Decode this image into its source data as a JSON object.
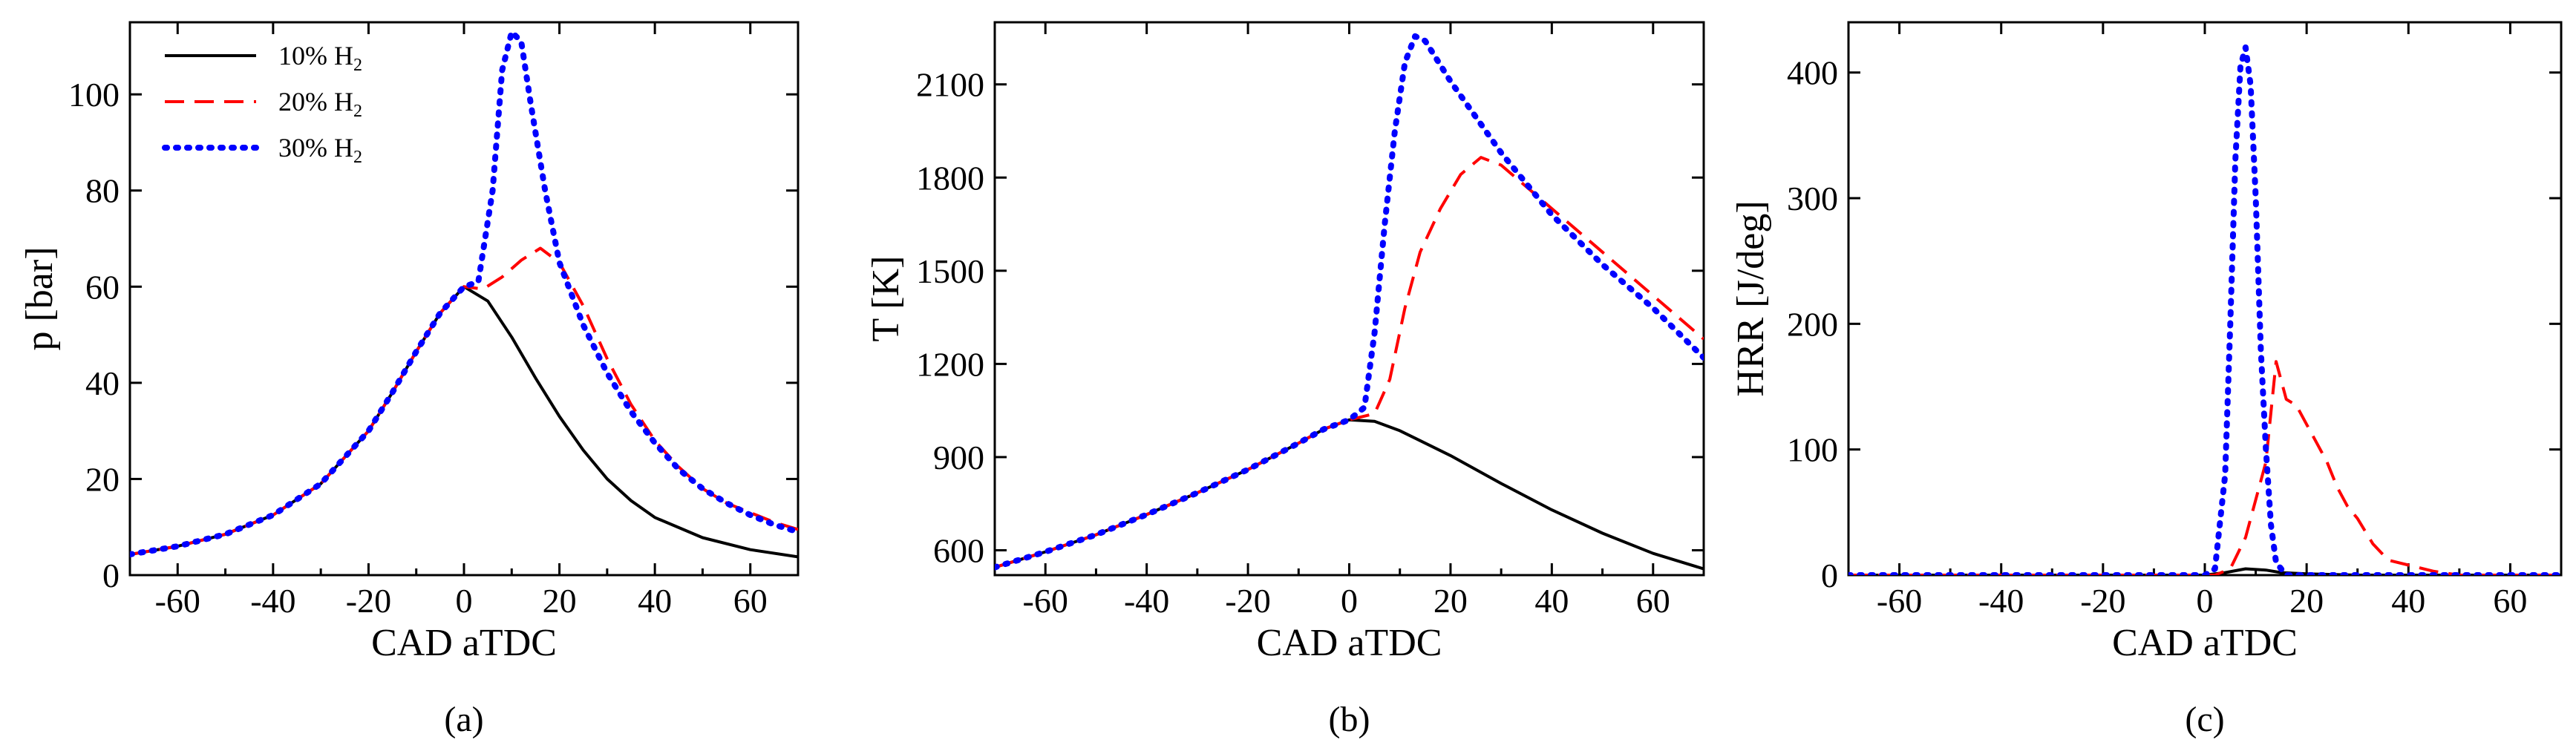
{
  "chart_data": [
    {
      "type": "line",
      "panel_label": "(a)",
      "xlabel": "CAD aTDC",
      "ylabel": "p [bar]",
      "xlim": [
        -70,
        70
      ],
      "ylim": [
        0,
        115
      ],
      "xticks": [
        -60,
        -40,
        -20,
        0,
        20,
        40,
        60
      ],
      "yticks": [
        0,
        20,
        40,
        60,
        80,
        100
      ],
      "legend": {
        "location": "top-left",
        "entries": [
          {
            "prefix": "10% H",
            "sub": "2"
          },
          {
            "prefix": "20% H",
            "sub": "2"
          },
          {
            "prefix": "30% H",
            "sub": "2"
          }
        ]
      },
      "series": [
        {
          "name": "10% H2",
          "color": "#000000",
          "style": "solid",
          "points": [
            [
              -70,
              4.3
            ],
            [
              -60,
              6
            ],
            [
              -50,
              8.5
            ],
            [
              -40,
              12.5
            ],
            [
              -30,
              19
            ],
            [
              -20,
              30
            ],
            [
              -15,
              38
            ],
            [
              -10,
              46.5
            ],
            [
              -5,
              54.5
            ],
            [
              0,
              60
            ],
            [
              5,
              57
            ],
            [
              10,
              49.5
            ],
            [
              15,
              41
            ],
            [
              20,
              33
            ],
            [
              25,
              26
            ],
            [
              30,
              20
            ],
            [
              35,
              15.5
            ],
            [
              40,
              12
            ],
            [
              50,
              7.8
            ],
            [
              60,
              5.3
            ],
            [
              70,
              3.8
            ]
          ]
        },
        {
          "name": "20% H2",
          "color": "#ff0000",
          "style": "dashed",
          "points": [
            [
              -70,
              4.3
            ],
            [
              -60,
              6
            ],
            [
              -50,
              8.5
            ],
            [
              -40,
              12.5
            ],
            [
              -30,
              19
            ],
            [
              -20,
              30
            ],
            [
              -15,
              38
            ],
            [
              -10,
              46.5
            ],
            [
              -5,
              54.5
            ],
            [
              0,
              60
            ],
            [
              4,
              59.5
            ],
            [
              8,
              62
            ],
            [
              12,
              65.5
            ],
            [
              16,
              68
            ],
            [
              20,
              65
            ],
            [
              25,
              56
            ],
            [
              30,
              45
            ],
            [
              35,
              35.5
            ],
            [
              40,
              28
            ],
            [
              45,
              22.5
            ],
            [
              50,
              18
            ],
            [
              55,
              15
            ],
            [
              60,
              13
            ],
            [
              65,
              11
            ],
            [
              70,
              9.5
            ]
          ]
        },
        {
          "name": "30% H2",
          "color": "#0000ff",
          "style": "dotted",
          "points": [
            [
              -70,
              4.3
            ],
            [
              -60,
              6
            ],
            [
              -50,
              8.5
            ],
            [
              -40,
              12.5
            ],
            [
              -30,
              19
            ],
            [
              -20,
              30
            ],
            [
              -15,
              38
            ],
            [
              -10,
              46.5
            ],
            [
              -5,
              54.5
            ],
            [
              0,
              60
            ],
            [
              3,
              61
            ],
            [
              6,
              80
            ],
            [
              8,
              105
            ],
            [
              10,
              113
            ],
            [
              12,
              111
            ],
            [
              14,
              98
            ],
            [
              17,
              80
            ],
            [
              20,
              65
            ],
            [
              25,
              52
            ],
            [
              30,
              42
            ],
            [
              35,
              34
            ],
            [
              40,
              27.5
            ],
            [
              45,
              22
            ],
            [
              50,
              18
            ],
            [
              55,
              15
            ],
            [
              60,
              12.5
            ],
            [
              65,
              10.5
            ],
            [
              70,
              9
            ]
          ]
        }
      ]
    },
    {
      "type": "line",
      "panel_label": "(b)",
      "xlabel": "CAD aTDC",
      "ylabel": "T [K]",
      "xlim": [
        -70,
        70
      ],
      "ylim": [
        520,
        2300
      ],
      "xticks": [
        -60,
        -40,
        -20,
        0,
        20,
        40,
        60
      ],
      "yticks": [
        600,
        900,
        1200,
        1500,
        1800,
        2100
      ],
      "series": [
        {
          "name": "10% H2",
          "color": "#000000",
          "style": "solid",
          "points": [
            [
              -70,
              545
            ],
            [
              -60,
              595
            ],
            [
              -50,
              650
            ],
            [
              -40,
              715
            ],
            [
              -30,
              785
            ],
            [
              -20,
              860
            ],
            [
              -10,
              945
            ],
            [
              -5,
              990
            ],
            [
              0,
              1020
            ],
            [
              5,
              1015
            ],
            [
              10,
              985
            ],
            [
              20,
              905
            ],
            [
              30,
              815
            ],
            [
              40,
              730
            ],
            [
              50,
              655
            ],
            [
              60,
              590
            ],
            [
              70,
              540
            ]
          ]
        },
        {
          "name": "20% H2",
          "color": "#ff0000",
          "style": "dashed",
          "points": [
            [
              -70,
              545
            ],
            [
              -60,
              595
            ],
            [
              -50,
              650
            ],
            [
              -40,
              715
            ],
            [
              -30,
              785
            ],
            [
              -20,
              860
            ],
            [
              -10,
              945
            ],
            [
              -5,
              990
            ],
            [
              0,
              1020
            ],
            [
              5,
              1040
            ],
            [
              8,
              1150
            ],
            [
              11,
              1380
            ],
            [
              14,
              1560
            ],
            [
              18,
              1700
            ],
            [
              22,
              1810
            ],
            [
              26,
              1865
            ],
            [
              30,
              1840
            ],
            [
              40,
              1700
            ],
            [
              50,
              1560
            ],
            [
              60,
              1420
            ],
            [
              70,
              1280
            ]
          ]
        },
        {
          "name": "30% H2",
          "color": "#0000ff",
          "style": "dotted",
          "points": [
            [
              -70,
              545
            ],
            [
              -60,
              595
            ],
            [
              -50,
              650
            ],
            [
              -40,
              715
            ],
            [
              -30,
              785
            ],
            [
              -20,
              860
            ],
            [
              -10,
              945
            ],
            [
              -5,
              990
            ],
            [
              0,
              1020
            ],
            [
              3,
              1060
            ],
            [
              5,
              1300
            ],
            [
              7,
              1650
            ],
            [
              9,
              1950
            ],
            [
              11,
              2170
            ],
            [
              13,
              2255
            ],
            [
              15,
              2240
            ],
            [
              20,
              2110
            ],
            [
              30,
              1880
            ],
            [
              40,
              1680
            ],
            [
              50,
              1520
            ],
            [
              60,
              1380
            ],
            [
              70,
              1220
            ]
          ]
        }
      ]
    },
    {
      "type": "line",
      "panel_label": "(c)",
      "xlabel": "CAD aTDC",
      "ylabel": "HRR [J/deg]",
      "xlim": [
        -70,
        70
      ],
      "ylim": [
        0,
        440
      ],
      "xticks": [
        -60,
        -40,
        -20,
        0,
        20,
        40,
        60
      ],
      "yticks": [
        0,
        100,
        200,
        300,
        400
      ],
      "series": [
        {
          "name": "10% H2",
          "color": "#000000",
          "style": "solid",
          "points": [
            [
              -70,
              0
            ],
            [
              0,
              0
            ],
            [
              4,
              2
            ],
            [
              8,
              5
            ],
            [
              12,
              4
            ],
            [
              15,
              2
            ],
            [
              20,
              1
            ],
            [
              30,
              0
            ],
            [
              70,
              0
            ]
          ]
        },
        {
          "name": "20% H2",
          "color": "#ff0000",
          "style": "dashed",
          "points": [
            [
              -70,
              0
            ],
            [
              2,
              0
            ],
            [
              5,
              5
            ],
            [
              8,
              30
            ],
            [
              10,
              60
            ],
            [
              12,
              90
            ],
            [
              14,
              170
            ],
            [
              16,
              140
            ],
            [
              18,
              135
            ],
            [
              20,
              120
            ],
            [
              22,
              105
            ],
            [
              24,
              90
            ],
            [
              26,
              70
            ],
            [
              28,
              55
            ],
            [
              30,
              45
            ],
            [
              33,
              25
            ],
            [
              36,
              12
            ],
            [
              40,
              8
            ],
            [
              45,
              3
            ],
            [
              50,
              0
            ],
            [
              70,
              0
            ]
          ]
        },
        {
          "name": "30% H2",
          "color": "#0000ff",
          "style": "dotted",
          "points": [
            [
              -70,
              0
            ],
            [
              0,
              0
            ],
            [
              2,
              5
            ],
            [
              4,
              80
            ],
            [
              5,
              200
            ],
            [
              6,
              330
            ],
            [
              7,
              405
            ],
            [
              8,
              420
            ],
            [
              9,
              390
            ],
            [
              10,
              300
            ],
            [
              11,
              180
            ],
            [
              12,
              100
            ],
            [
              13,
              40
            ],
            [
              14,
              10
            ],
            [
              16,
              0
            ],
            [
              70,
              0
            ]
          ]
        }
      ]
    }
  ]
}
